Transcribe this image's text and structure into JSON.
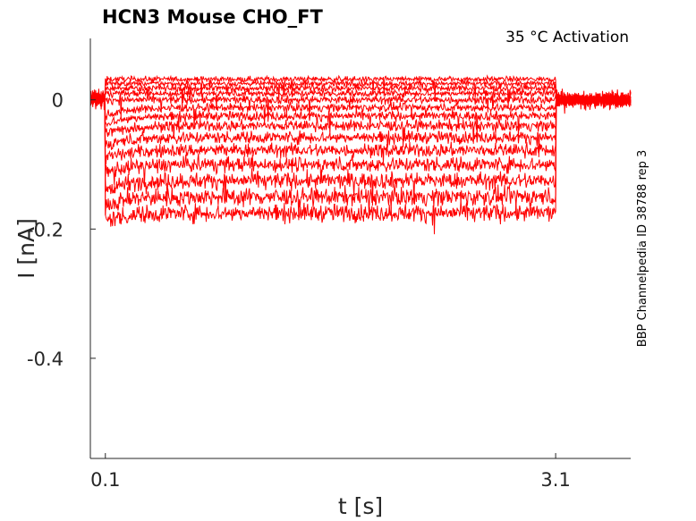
{
  "chart_data": {
    "type": "line",
    "title": "HCN3  Mouse  CHO_FT",
    "annotation": "35 °C  Activation",
    "side_label": "BBP Channelpedia ID 38788 rep 3",
    "xlabel": "t [s]",
    "ylabel": "I [nA]",
    "xlim": [
      0,
      3.6
    ],
    "ylim": [
      -0.555,
      0.095
    ],
    "xticks": [
      0.1,
      3.1
    ],
    "xtick_labels": [
      "0.1",
      "3.1"
    ],
    "yticks": [
      0,
      -0.2,
      -0.4
    ],
    "ytick_labels": [
      "0",
      "-0.2",
      "-0.4"
    ],
    "grid": false,
    "line_color": "#ff0000",
    "step_start": 0.1,
    "step_end": 3.1,
    "series": [
      {
        "baseline": 0.0,
        "step_level": 0.032,
        "noise": 0.004
      },
      {
        "baseline": 0.0,
        "step_level": 0.025,
        "noise": 0.004
      },
      {
        "baseline": 0.0,
        "step_level": 0.018,
        "noise": 0.005
      },
      {
        "baseline": 0.0,
        "step_level": 0.01,
        "noise": 0.005
      },
      {
        "baseline": 0.0,
        "step_level": 0.0,
        "noise": 0.006
      },
      {
        "baseline": 0.0,
        "step_level": -0.012,
        "noise": 0.006
      },
      {
        "baseline": 0.0,
        "step_level": -0.025,
        "noise": 0.007
      },
      {
        "baseline": 0.0,
        "step_level": -0.04,
        "noise": 0.008
      },
      {
        "baseline": 0.0,
        "step_level": -0.058,
        "noise": 0.009
      },
      {
        "baseline": 0.0,
        "step_level": -0.078,
        "noise": 0.01
      },
      {
        "baseline": 0.0,
        "step_level": -0.1,
        "noise": 0.011
      },
      {
        "baseline": 0.0,
        "step_level": -0.125,
        "noise": 0.012
      },
      {
        "baseline": 0.0,
        "step_level": -0.15,
        "noise": 0.013
      },
      {
        "baseline": 0.0,
        "step_level": -0.175,
        "noise": 0.013
      }
    ]
  }
}
